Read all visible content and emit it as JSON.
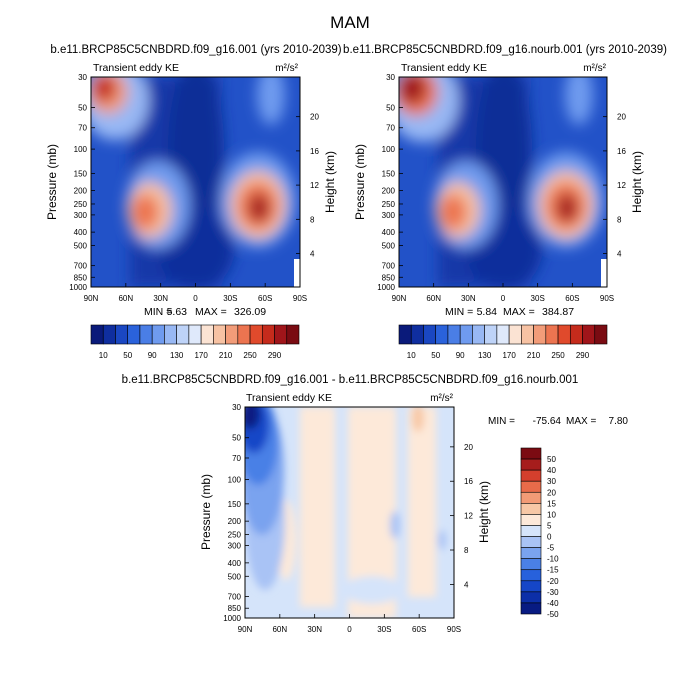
{
  "main_title": "MAM",
  "colors": {
    "main_scale": [
      "#0a1a7a",
      "#0f2e9f",
      "#1a47c2",
      "#2a62db",
      "#4a7ee6",
      "#6f9bef",
      "#98b8f4",
      "#bed3f8",
      "#dfe9fb",
      "#fbe3d3",
      "#f7c2a3",
      "#f29c79",
      "#ec7450",
      "#e04a2c",
      "#c52b1c",
      "#a0151a",
      "#7a0b12"
    ],
    "diff_scale": [
      "#081b82",
      "#0c2fa8",
      "#1546c7",
      "#2761dc",
      "#4a80e6",
      "#7aa3ef",
      "#a9c3f5",
      "#d5e4fa",
      "#fde9d9",
      "#f7c8a6",
      "#f29b76",
      "#e86b4a",
      "#d43f2d",
      "#a61d1c",
      "#7b0b12"
    ]
  },
  "chart_data": [
    {
      "type": "heatmap",
      "title": "b.e11.BRCP85C5CNBDRD.f09_g16.001 (yrs 2010-2039)",
      "subtitle_left": "Transient eddy KE",
      "units": "m²/s²",
      "xlabel": "",
      "ylabel": "Pressure (mb)",
      "ylabel_right": "Height (km)",
      "x_ticks": [
        "90N",
        "60N",
        "30N",
        "0",
        "30S",
        "60S",
        "90S"
      ],
      "y_ticks": [
        "30",
        "50",
        "70",
        "100",
        "150",
        "200",
        "250",
        "300",
        "400",
        "500",
        "700",
        "850",
        "1000"
      ],
      "y_ticks_right": [
        "20",
        "16",
        "12",
        "8",
        "4"
      ],
      "min_label": "MIN =",
      "min_value": "5.63",
      "max_label": "MAX =",
      "max_value": "326.09",
      "colorbar_labels": [
        "10",
        "50",
        "90",
        "130",
        "170",
        "210",
        "250",
        "290"
      ]
    },
    {
      "type": "heatmap",
      "title": "b.e11.BRCP85C5CNBDRD.f09_g16.nourb.001 (yrs 2010-2039)",
      "subtitle_left": "Transient eddy KE",
      "units": "m²/s²",
      "xlabel": "",
      "ylabel": "Pressure (mb)",
      "ylabel_right": "Height (km)",
      "x_ticks": [
        "90N",
        "60N",
        "30N",
        "0",
        "30S",
        "60S",
        "90S"
      ],
      "y_ticks": [
        "30",
        "50",
        "70",
        "100",
        "150",
        "200",
        "250",
        "300",
        "400",
        "500",
        "700",
        "850",
        "1000"
      ],
      "y_ticks_right": [
        "20",
        "16",
        "12",
        "8",
        "4"
      ],
      "min_label": "MIN =",
      "min_value": "5.84",
      "max_label": "MAX =",
      "max_value": "384.87",
      "colorbar_labels": [
        "10",
        "50",
        "90",
        "130",
        "170",
        "210",
        "250",
        "290"
      ]
    },
    {
      "type": "heatmap",
      "title": "b.e11.BRCP85C5CNBDRD.f09_g16.001 - b.e11.BRCP85C5CNBDRD.f09_g16.nourb.001",
      "subtitle_left": "Transient eddy KE",
      "units": "m²/s²",
      "xlabel": "",
      "ylabel": "Pressure (mb)",
      "ylabel_right": "Height (km)",
      "x_ticks": [
        "90N",
        "60N",
        "30N",
        "0",
        "30S",
        "60S",
        "90S"
      ],
      "y_ticks": [
        "30",
        "50",
        "70",
        "100",
        "150",
        "200",
        "250",
        "300",
        "400",
        "500",
        "700",
        "850",
        "1000"
      ],
      "y_ticks_right": [
        "20",
        "16",
        "12",
        "8",
        "4"
      ],
      "min_label": "MIN =",
      "min_value": "-75.64",
      "max_label": "MAX =",
      "max_value": "7.80",
      "colorbar_labels": [
        "50",
        "40",
        "30",
        "20",
        "15",
        "10",
        "5",
        "0",
        "-5",
        "-10",
        "-15",
        "-20",
        "-30",
        "-40",
        "-50"
      ]
    }
  ]
}
